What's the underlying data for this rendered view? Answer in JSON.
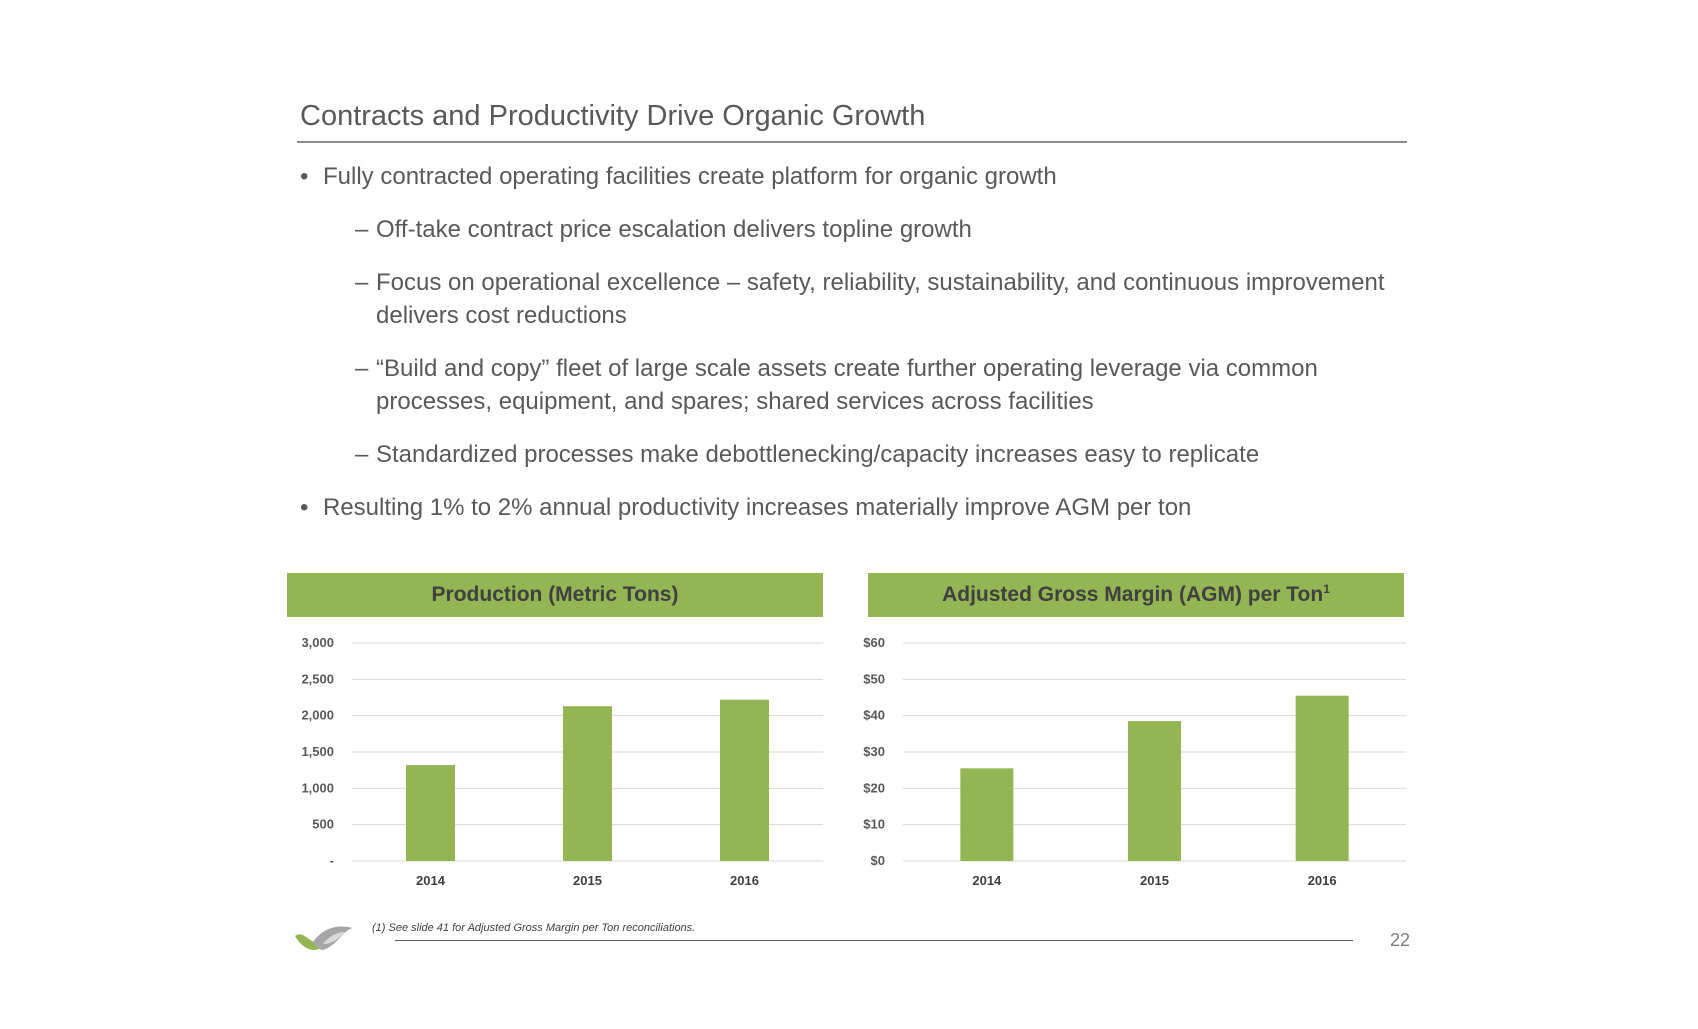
{
  "title": "Contracts and Productivity Drive Organic Growth",
  "bullets": [
    {
      "type": "bullet",
      "mark": "•",
      "text": "Fully contracted operating facilities create platform for organic growth"
    },
    {
      "type": "sub",
      "mark": "–",
      "text": "Off-take contract price escalation delivers topline growth"
    },
    {
      "type": "sub",
      "mark": "–",
      "text": "Focus on operational excellence – safety, reliability, sustainability, and continuous improvement delivers cost reductions"
    },
    {
      "type": "sub",
      "mark": "–",
      "text": "“Build and copy” fleet of large scale assets create further operating leverage via common processes, equipment, and spares; shared services across facilities"
    },
    {
      "type": "sub",
      "mark": "–",
      "text": "Standardized processes make debottlenecking/capacity increases easy to replicate"
    },
    {
      "type": "bullet",
      "mark": "•",
      "text": "Resulting 1% to 2% annual productivity increases materially improve AGM per ton"
    }
  ],
  "chart_data": [
    {
      "type": "bar",
      "title": "Production (Metric Tons)",
      "categories": [
        "2014",
        "2015",
        "2016"
      ],
      "values": [
        1320,
        2130,
        2220
      ],
      "ylim": [
        0,
        3000
      ],
      "yticks": [
        0,
        500,
        1000,
        1500,
        2000,
        2500,
        3000
      ],
      "ytick_labels": [
        "-",
        "500",
        "1,000",
        "1,500",
        "2,000",
        "2,500",
        "3,000"
      ],
      "grid": true,
      "bar_color": "#93b553"
    },
    {
      "type": "bar",
      "title": "Adjusted Gross Margin (AGM) per Ton",
      "title_sup": "1",
      "categories": [
        "2014",
        "2015",
        "2016"
      ],
      "values": [
        25.5,
        38.5,
        45.5
      ],
      "ylim": [
        0,
        60
      ],
      "yticks": [
        0,
        10,
        20,
        30,
        40,
        50,
        60
      ],
      "ytick_labels": [
        "$0",
        "$10",
        "$20",
        "$30",
        "$40",
        "$50",
        "$60"
      ],
      "grid": true,
      "bar_color": "#93b553"
    }
  ],
  "footnote": "(1)  See slide 41 for Adjusted Gross Margin per Ton reconciliations.",
  "page_number": "22",
  "colors": {
    "accent": "#93b553",
    "text": "#595959",
    "grid": "#d9d9d9"
  }
}
